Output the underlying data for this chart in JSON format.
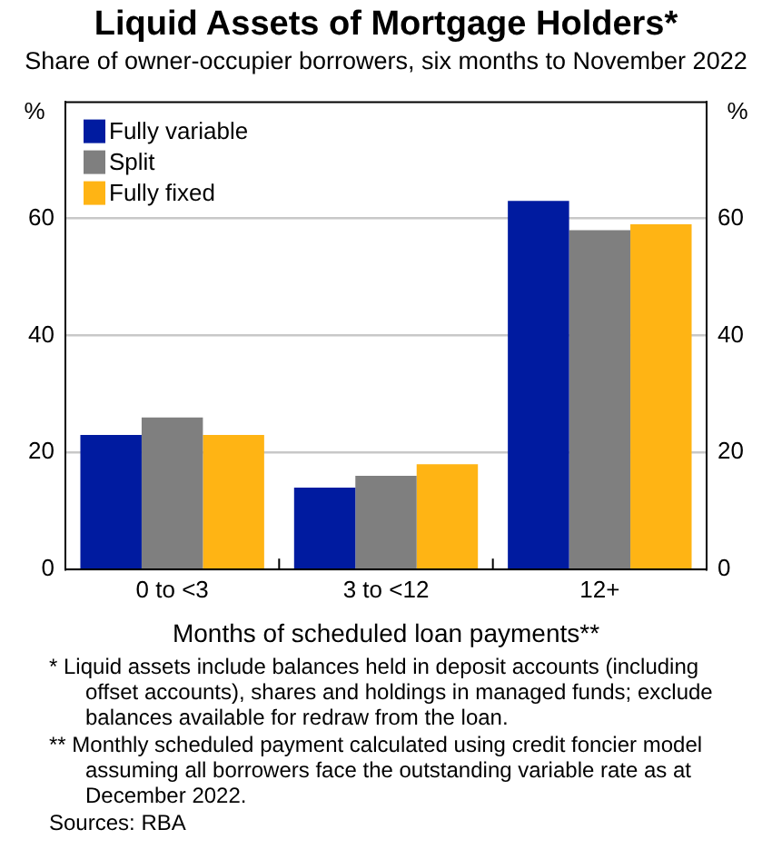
{
  "chart_data": {
    "type": "bar",
    "title": "Liquid Assets of Mortgage Holders*",
    "subtitle": "Share of owner-occupier borrowers, six months to November 2022",
    "xlabel": "Months of scheduled loan payments**",
    "ylabel": "%",
    "y2label": "%",
    "categories": [
      "0 to <3",
      "3 to <12",
      "12+"
    ],
    "series": [
      {
        "name": "Fully variable",
        "color": "#001ba0",
        "values": [
          23,
          14,
          63
        ]
      },
      {
        "name": "Split",
        "color": "#7f7f7f",
        "values": [
          26,
          16,
          58
        ]
      },
      {
        "name": "Fully fixed",
        "color": "#ffb414",
        "values": [
          23,
          18,
          59
        ]
      }
    ],
    "ylim": [
      0,
      80
    ],
    "yticks": [
      0,
      20,
      40,
      60
    ],
    "y2lim": [
      0,
      80
    ],
    "y2ticks": [
      0,
      20,
      40,
      60
    ],
    "grid": "y",
    "legend": "top left",
    "annotations": [
      "* Liquid assets include balances held in deposit accounts (including offset accounts), shares and holdings in managed funds; exclude balances available for redraw from the loan.",
      "** Monthly scheduled payment calculated using credit foncier model assuming all borrowers face the outstanding variable rate as at December 2022.",
      "Sources: RBA"
    ]
  }
}
